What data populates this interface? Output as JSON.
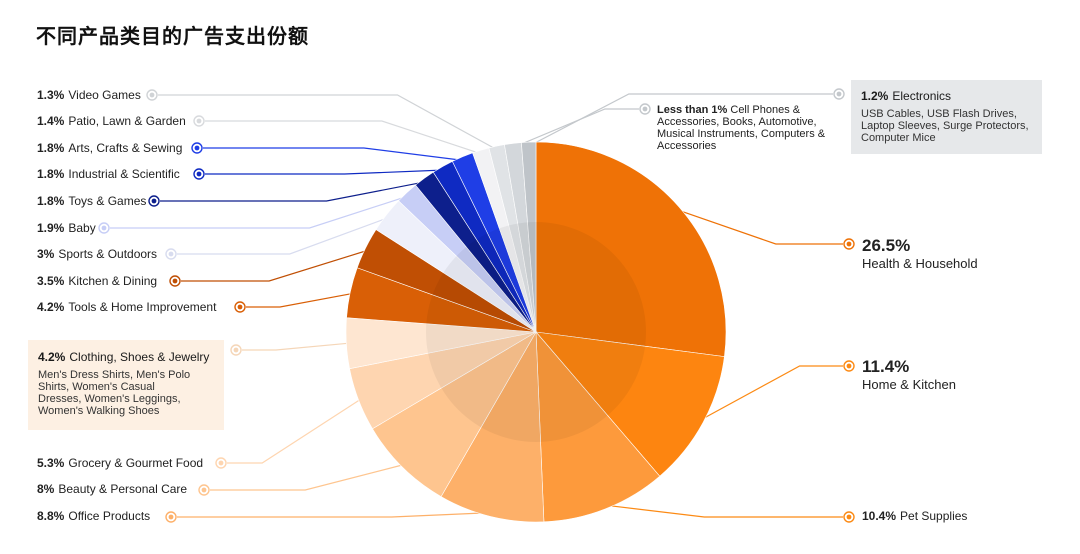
{
  "title": "不同产品类目的广告支出份额",
  "colors": {
    "orange_dark": "#ee7207",
    "orange_mid": "#fc8a14",
    "blue": "#1f3bd0"
  },
  "chart_data": {
    "type": "pie",
    "title": "不同产品类目的广告支出份额",
    "slices": [
      {
        "pct": "26.5%",
        "value": 26.5,
        "name": "Health & Household",
        "color": "#ef7206"
      },
      {
        "pct": "11.4%",
        "value": 11.4,
        "name": "Home & Kitchen",
        "color": "#fd8510"
      },
      {
        "pct": "10.4%",
        "value": 10.4,
        "name": "Pet Supplies",
        "color": "#fd9a3c"
      },
      {
        "pct": "8.8%",
        "value": 8.8,
        "name": "Office Products",
        "color": "#fdb069"
      },
      {
        "pct": "8%",
        "value": 8.0,
        "name": "Beauty & Personal Care",
        "color": "#fec58f"
      },
      {
        "pct": "5.3%",
        "value": 5.3,
        "name": "Grocery & Gourmet Food",
        "color": "#fed5b0"
      },
      {
        "pct": "4.2%",
        "value": 4.2,
        "name": "Clothing, Shoes & Jewelry",
        "color": "#fee6d1"
      },
      {
        "pct": "4.2%",
        "value": 4.2,
        "name": "Tools & Home Improvement",
        "color": "#d95f06"
      },
      {
        "pct": "3.5%",
        "value": 3.5,
        "name": "Kitchen & Dining",
        "color": "#c04f04"
      },
      {
        "pct": "3%",
        "value": 3.0,
        "name": "Sports & Outdoors",
        "color": "#eef0fa"
      },
      {
        "pct": "1.9%",
        "value": 1.9,
        "name": "Baby",
        "color": "#c7cef6"
      },
      {
        "pct": "1.8%",
        "value": 1.8,
        "name": "Toys & Games",
        "color": "#0d1f8c"
      },
      {
        "pct": "1.8%",
        "value": 1.8,
        "name": "Industrial & Scientific",
        "color": "#0f2ac2"
      },
      {
        "pct": "1.8%",
        "value": 1.8,
        "name": "Arts, Crafts & Sewing",
        "color": "#1f3ee6"
      },
      {
        "pct": "1.4%",
        "value": 1.4,
        "name": "Patio, Lawn & Garden",
        "color": "#f2f2f4"
      },
      {
        "pct": "1.3%",
        "value": 1.3,
        "name": "Video Games",
        "color": "#e0e3e6"
      },
      {
        "pct": "Less than 1%",
        "value": 1.4,
        "name": "Cell Phones & Accessories, Books, Automotive, Musical Instruments, Computers & Accessories",
        "color": "#d3d7db"
      },
      {
        "pct": "1.2%",
        "value": 1.2,
        "name": "Electronics",
        "color": "#bfc4c9"
      }
    ],
    "labels": {
      "health": {
        "pct": "26.5%",
        "name": "Health & Household"
      },
      "home": {
        "pct": "11.4%",
        "name": "Home & Kitchen"
      },
      "pet": {
        "pct": "10.4%",
        "name": "Pet Supplies"
      },
      "office": {
        "pct": "8.8%",
        "name": "Office Products"
      },
      "beauty": {
        "pct": "8%",
        "name": "Beauty & Personal Care"
      },
      "grocery": {
        "pct": "5.3%",
        "name": "Grocery & Gourmet Food"
      },
      "clothing": {
        "pct": "4.2%",
        "name": "Clothing, Shoes & Jewelry",
        "detail": "Men's Dress Shirts, Men's Polo Shirts, Women's Casual Dresses, Women's Leggings, Women's Walking Shoes"
      },
      "tools": {
        "pct": "4.2%",
        "name": "Tools & Home Improvement"
      },
      "kitchen": {
        "pct": "3.5%",
        "name": "Kitchen & Dining"
      },
      "sports": {
        "pct": "3%",
        "name": "Sports & Outdoors"
      },
      "baby": {
        "pct": "1.9%",
        "name": "Baby"
      },
      "toys": {
        "pct": "1.8%",
        "name": "Toys & Games"
      },
      "industrial": {
        "pct": "1.8%",
        "name": "Industrial & Scientific"
      },
      "arts": {
        "pct": "1.8%",
        "name": "Arts, Crafts & Sewing"
      },
      "patio": {
        "pct": "1.4%",
        "name": "Patio, Lawn & Garden"
      },
      "video": {
        "pct": "1.3%",
        "name": "Video Games"
      },
      "less": {
        "pct": "Less than 1%",
        "name": "Cell Phones & Accessories, Books, Automotive, Musical Instruments, Computers & Accessories"
      },
      "electronics": {
        "pct": "1.2%",
        "name": "Electronics",
        "detail": "USB Cables, USB Flash Drives, Laptop Sleeves, Surge Protectors, Computer Mice"
      }
    }
  }
}
